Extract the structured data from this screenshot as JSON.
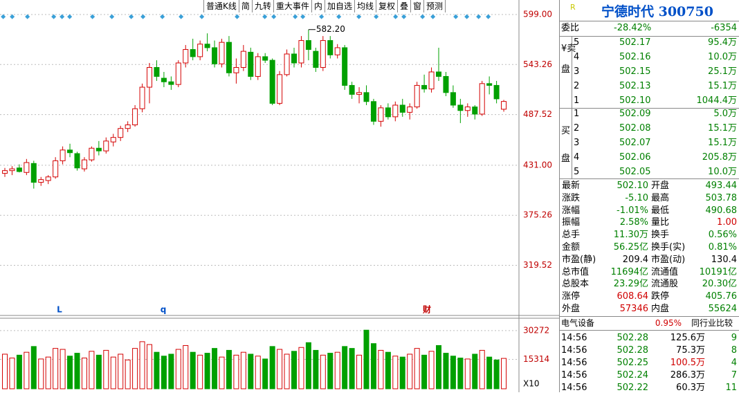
{
  "toolbar": [
    "普通K线",
    "简",
    "九转",
    "重大事件",
    "内",
    "加自选",
    "均线",
    "复权",
    "叠",
    "窗",
    "预测"
  ],
  "chart_data": {
    "type": "candlestick",
    "candles": [
      [
        422,
        428,
        418,
        425
      ],
      [
        425,
        430,
        420,
        427
      ],
      [
        428,
        432,
        423,
        424
      ],
      [
        423,
        438,
        420,
        434
      ],
      [
        433,
        436,
        405,
        412
      ],
      [
        412,
        418,
        408,
        415
      ],
      [
        414,
        420,
        410,
        418
      ],
      [
        418,
        440,
        416,
        436
      ],
      [
        436,
        452,
        432,
        448
      ],
      [
        448,
        455,
        440,
        445
      ],
      [
        444,
        446,
        425,
        428
      ],
      [
        427,
        440,
        424,
        437
      ],
      [
        437,
        452,
        435,
        450
      ],
      [
        450,
        458,
        442,
        447
      ],
      [
        447,
        462,
        444,
        458
      ],
      [
        457,
        466,
        452,
        462
      ],
      [
        462,
        475,
        458,
        472
      ],
      [
        472,
        480,
        468,
        476
      ],
      [
        476,
        498,
        474,
        494
      ],
      [
        494,
        522,
        490,
        518
      ],
      [
        518,
        545,
        500,
        540
      ],
      [
        540,
        548,
        525,
        530
      ],
      [
        528,
        535,
        518,
        524
      ],
      [
        524,
        530,
        515,
        521
      ],
      [
        521,
        548,
        518,
        545
      ],
      [
        545,
        565,
        540,
        560
      ],
      [
        560,
        572,
        548,
        552
      ],
      [
        552,
        570,
        548,
        566
      ],
      [
        566,
        578,
        558,
        562
      ],
      [
        562,
        570,
        540,
        544
      ],
      [
        544,
        572,
        540,
        568
      ],
      [
        568,
        575,
        530,
        534
      ],
      [
        534,
        550,
        522,
        540
      ],
      [
        540,
        565,
        536,
        558
      ],
      [
        557,
        562,
        526,
        530
      ],
      [
        530,
        556,
        526,
        552
      ],
      [
        552,
        556,
        545,
        548
      ],
      [
        548,
        550,
        498,
        500
      ],
      [
        500,
        536,
        498,
        532
      ],
      [
        532,
        560,
        530,
        555
      ],
      [
        555,
        562,
        540,
        545
      ],
      [
        545,
        575,
        540,
        570
      ],
      [
        570,
        582.2,
        548,
        560
      ],
      [
        558,
        562,
        535,
        540
      ],
      [
        540,
        575,
        536,
        570
      ],
      [
        570,
        575,
        550,
        554
      ],
      [
        554,
        566,
        550,
        562
      ],
      [
        562,
        565,
        515,
        520
      ],
      [
        520,
        524,
        505,
        510
      ],
      [
        510,
        518,
        500,
        512
      ],
      [
        512,
        520,
        498,
        502
      ],
      [
        502,
        505,
        476,
        480
      ],
      [
        480,
        498,
        474,
        495
      ],
      [
        495,
        500,
        482,
        485
      ],
      [
        485,
        502,
        480,
        498
      ],
      [
        498,
        505,
        485,
        490
      ],
      [
        490,
        500,
        482,
        496
      ],
      [
        496,
        524,
        494,
        520
      ],
      [
        520,
        532,
        512,
        516
      ],
      [
        516,
        540,
        512,
        535
      ],
      [
        535,
        562,
        525,
        530
      ],
      [
        530,
        535,
        508,
        512
      ],
      [
        512,
        520,
        495,
        498
      ],
      [
        498,
        505,
        478,
        492
      ],
      [
        492,
        500,
        485,
        496
      ],
      [
        496,
        498,
        482,
        488
      ],
      [
        488,
        525,
        486,
        522
      ],
      [
        522,
        530,
        510,
        520
      ],
      [
        520,
        525,
        500,
        505
      ],
      [
        493.44,
        503.78,
        490.68,
        502.1
      ]
    ],
    "ylim": [
      264.4,
      611.3
    ],
    "yticks": [
      {
        "value": 599,
        "label": "599.00"
      },
      {
        "value": 543.26,
        "label": "543.26"
      },
      {
        "value": 487.52,
        "label": "487.52"
      },
      {
        "value": 431,
        "label": "431.00"
      },
      {
        "value": 375.26,
        "label": "375.26"
      },
      {
        "value": 319.52,
        "label": "319.52"
      }
    ],
    "grid": true,
    "up_color": "#d40000",
    "down_color": "#00a000",
    "annotation": "582.20",
    "markers": [
      "L",
      "q",
      "财"
    ],
    "volume": {
      "values": [
        18000,
        16000,
        17500,
        19000,
        22000,
        15500,
        16500,
        21000,
        20500,
        17000,
        18500,
        16000,
        19500,
        17500,
        20000,
        16500,
        18000,
        15000,
        21000,
        24500,
        23000,
        19000,
        17000,
        18000,
        20500,
        22500,
        19000,
        17500,
        18500,
        21000,
        16500,
        20000,
        17500,
        19000,
        18000,
        17000,
        15500,
        22000,
        20500,
        18000,
        19500,
        21500,
        24000,
        20000,
        17500,
        18500,
        19000,
        22000,
        21000,
        17500,
        30500,
        23500,
        20000,
        19000,
        17000,
        16500,
        18000,
        21000,
        17500,
        19500,
        22500,
        18500,
        17000,
        16000,
        15500,
        18000,
        20000,
        16500,
        15000,
        15800
      ],
      "ylim": [
        0,
        36700
      ],
      "yticks": [
        30272,
        15314
      ],
      "unit": "X10"
    }
  },
  "quote": {
    "r": "R",
    "title": "宁德时代 300750",
    "ratio": [
      "委比",
      "-28.42%",
      "-6354"
    ],
    "sell_side": "¥卖盘",
    "buy_side": "买盘",
    "sell": [
      [
        "5",
        "502.17",
        "95.4万"
      ],
      [
        "4",
        "502.16",
        "10.0万"
      ],
      [
        "3",
        "502.15",
        "25.1万"
      ],
      [
        "2",
        "502.13",
        "15.1万"
      ],
      [
        "1",
        "502.10",
        "1044.4万"
      ]
    ],
    "buy": [
      [
        "1",
        "502.09",
        "5.0万"
      ],
      [
        "2",
        "502.08",
        "15.1万"
      ],
      [
        "3",
        "502.07",
        "15.1万"
      ],
      [
        "4",
        "502.06",
        "205.8万"
      ],
      [
        "5",
        "502.05",
        "10.0万"
      ]
    ],
    "stats": [
      [
        "最新",
        "502.10",
        "开盘",
        "493.44"
      ],
      [
        "涨跌",
        "-5.10",
        "最高",
        "503.78"
      ],
      [
        "涨幅",
        "-1.01%",
        "最低",
        "490.68"
      ],
      [
        "振幅",
        "2.58%",
        "量比",
        "1.00"
      ],
      [
        "总手",
        "11.30万",
        "换手",
        "0.56%"
      ],
      [
        "金额",
        "56.25亿",
        "换手(实)",
        "0.81%"
      ],
      [
        "市盈(静)",
        "209.4",
        "市盈(动)",
        "130.4"
      ],
      [
        "总市值",
        "11694亿",
        "流通值",
        "10191亿"
      ],
      [
        "总股本",
        "23.29亿",
        "流通股",
        "20.30亿"
      ],
      [
        "涨停",
        "608.64",
        "跌停",
        "405.76"
      ],
      [
        "外盘",
        "57346",
        "内盘",
        "55624"
      ]
    ],
    "sector": [
      "电气设备",
      "0.95%",
      "同行业比较"
    ],
    "trades": [
      [
        "14:56",
        "502.28",
        "125.6万",
        "9"
      ],
      [
        "14:56",
        "502.28",
        "75.3万",
        "8"
      ],
      [
        "14:56",
        "502.25",
        "100.5万",
        "4"
      ],
      [
        "14:56",
        "502.24",
        "286.3万",
        "7"
      ],
      [
        "14:56",
        "502.22",
        "60.3万",
        "11"
      ]
    ]
  }
}
